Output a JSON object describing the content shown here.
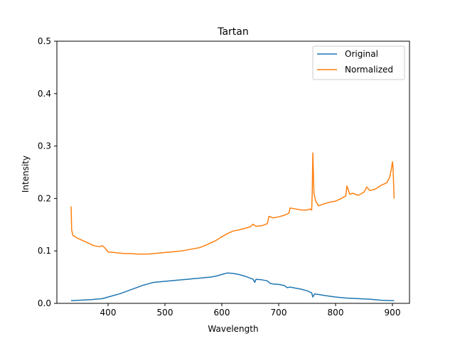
{
  "chart_data": {
    "type": "line",
    "title": "Tartan",
    "xlabel": "Wavelength",
    "ylabel": "Intensity",
    "xlim": [
      310,
      930
    ],
    "ylim": [
      0,
      0.5
    ],
    "xticks": [
      "400",
      "500",
      "600",
      "700",
      "800",
      "900"
    ],
    "xtick_values": [
      400,
      500,
      600,
      700,
      800,
      900
    ],
    "yticks": [
      "0.0",
      "0.1",
      "0.2",
      "0.3",
      "0.4",
      "0.5"
    ],
    "ytick_values": [
      0,
      0.1,
      0.2,
      0.3,
      0.4,
      0.5
    ],
    "grid": false,
    "legend_position": "top-right",
    "series": [
      {
        "name": "Original",
        "color": "#1f77b4",
        "x": [
          335,
          350,
          370,
          390,
          400,
          410,
          420,
          430,
          440,
          450,
          460,
          470,
          480,
          490,
          500,
          510,
          520,
          530,
          540,
          550,
          560,
          570,
          580,
          590,
          600,
          610,
          620,
          630,
          640,
          650,
          655,
          658,
          660,
          670,
          680,
          685,
          690,
          700,
          710,
          715,
          720,
          730,
          740,
          750,
          758,
          760,
          763,
          770,
          780,
          800,
          820,
          840,
          860,
          880,
          900,
          903
        ],
        "y": [
          0.005,
          0.006,
          0.007,
          0.009,
          0.012,
          0.015,
          0.018,
          0.022,
          0.026,
          0.03,
          0.034,
          0.037,
          0.04,
          0.041,
          0.042,
          0.043,
          0.044,
          0.045,
          0.046,
          0.047,
          0.048,
          0.049,
          0.05,
          0.052,
          0.055,
          0.058,
          0.057,
          0.055,
          0.052,
          0.048,
          0.046,
          0.04,
          0.046,
          0.045,
          0.043,
          0.038,
          0.037,
          0.036,
          0.034,
          0.03,
          0.031,
          0.029,
          0.027,
          0.024,
          0.02,
          0.012,
          0.018,
          0.017,
          0.015,
          0.012,
          0.01,
          0.009,
          0.008,
          0.006,
          0.005,
          0.005
        ]
      },
      {
        "name": "Normalized",
        "color": "#ff7f0e",
        "x": [
          335,
          336,
          338,
          345,
          355,
          365,
          375,
          385,
          390,
          395,
          400,
          410,
          420,
          430,
          440,
          450,
          460,
          470,
          480,
          490,
          500,
          510,
          520,
          530,
          540,
          550,
          560,
          570,
          580,
          590,
          600,
          610,
          620,
          630,
          640,
          650,
          655,
          660,
          670,
          680,
          683,
          690,
          700,
          710,
          718,
          720,
          730,
          740,
          750,
          755,
          758,
          759,
          760,
          762,
          765,
          770,
          780,
          790,
          800,
          810,
          818,
          820,
          825,
          830,
          840,
          850,
          855,
          860,
          870,
          880,
          890,
          895,
          898,
          900,
          901,
          903
        ],
        "y": [
          0.185,
          0.14,
          0.13,
          0.125,
          0.12,
          0.115,
          0.11,
          0.108,
          0.11,
          0.105,
          0.098,
          0.097,
          0.096,
          0.095,
          0.095,
          0.094,
          0.094,
          0.094,
          0.095,
          0.096,
          0.097,
          0.098,
          0.099,
          0.1,
          0.102,
          0.104,
          0.106,
          0.11,
          0.115,
          0.12,
          0.127,
          0.133,
          0.138,
          0.14,
          0.143,
          0.146,
          0.151,
          0.147,
          0.148,
          0.152,
          0.166,
          0.163,
          0.165,
          0.168,
          0.172,
          0.182,
          0.18,
          0.178,
          0.178,
          0.18,
          0.178,
          0.21,
          0.287,
          0.21,
          0.195,
          0.186,
          0.19,
          0.193,
          0.195,
          0.2,
          0.205,
          0.224,
          0.208,
          0.21,
          0.206,
          0.212,
          0.222,
          0.215,
          0.218,
          0.225,
          0.23,
          0.24,
          0.255,
          0.27,
          0.26,
          0.2
        ]
      }
    ]
  }
}
